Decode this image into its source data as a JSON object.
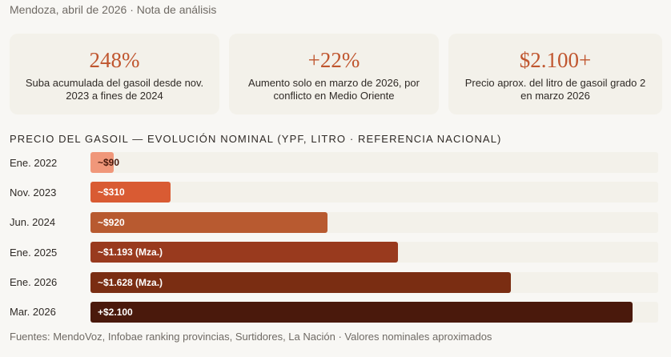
{
  "header": {
    "meta": "Mendoza, abril de 2026 · Nota de análisis"
  },
  "cards": [
    {
      "value": "248%",
      "desc": "Suba acumulada del gasoil desde nov. 2023 a fines de 2024"
    },
    {
      "value": "+22%",
      "desc": "Aumento solo en marzo de 2026, por conflicto en Medio Oriente"
    },
    {
      "value": "$2.100+",
      "desc": "Precio aprox. del litro de gasoil grado 2 en marzo 2026"
    }
  ],
  "chart_data": {
    "type": "bar",
    "title": "PRECIO DEL GASOIL — EVOLUCIÓN NOMINAL (YPF, LITRO · REFERENCIA NACIONAL)",
    "xlim": [
      0,
      2200
    ],
    "categories": [
      "Ene. 2022",
      "Nov. 2023",
      "Jun. 2024",
      "Ene. 2025",
      "Ene. 2026",
      "Mar. 2026"
    ],
    "values": [
      90,
      310,
      920,
      1193,
      1628,
      2100
    ],
    "labels": [
      "~$90",
      "~$310",
      "~$920",
      "~$1.193 (Mza.)",
      "~$1.628 (Mza.)",
      "+$2.100"
    ],
    "colors": [
      "#f0977a",
      "#d95b33",
      "#b85a30",
      "#993a1e",
      "#7a2d12",
      "#4a190c"
    ],
    "label_colors": [
      "#4a190c",
      "#ffffff",
      "#ffffff",
      "#ffffff",
      "#ffffff",
      "#ffffff"
    ]
  },
  "footer": {
    "sources": "Fuentes: MendoVoz, Infobae ranking provincias, Surtidores, La Nación · Valores nominales aproximados"
  }
}
